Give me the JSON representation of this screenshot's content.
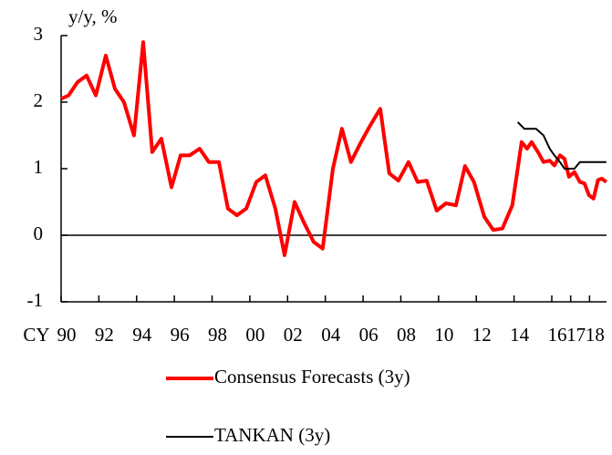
{
  "chart_data": {
    "type": "line",
    "y_label": "y/y, %",
    "x_label": "CY",
    "xlim": [
      1990,
      2018.9
    ],
    "ylim": [
      -1,
      3
    ],
    "yticks": [
      -1,
      0,
      1,
      2,
      3
    ],
    "xticks": [
      {
        "value": 1990,
        "label": "90"
      },
      {
        "value": 1992,
        "label": "92"
      },
      {
        "value": 1994,
        "label": "94"
      },
      {
        "value": 1996,
        "label": "96"
      },
      {
        "value": 1998,
        "label": "98"
      },
      {
        "value": 2000,
        "label": "00"
      },
      {
        "value": 2002,
        "label": "02"
      },
      {
        "value": 2004,
        "label": "04"
      },
      {
        "value": 2006,
        "label": "06"
      },
      {
        "value": 2008,
        "label": "08"
      },
      {
        "value": 2010,
        "label": "10"
      },
      {
        "value": 2012,
        "label": "12"
      },
      {
        "value": 2014,
        "label": "14"
      },
      {
        "value": 2016,
        "label": "16"
      },
      {
        "value": 2017,
        "label": "17"
      },
      {
        "value": 2018,
        "label": "18"
      }
    ],
    "legend": "bottom",
    "series": [
      {
        "name": "Consensus Forecasts (3y)",
        "color": "#ff0000",
        "width": 4,
        "x": [
          1990.0,
          1990.39,
          1990.87,
          1991.35,
          1991.84,
          1992.37,
          1992.85,
          1993.33,
          1993.86,
          1994.35,
          1994.83,
          1995.31,
          1995.85,
          1996.33,
          1996.81,
          1997.34,
          1997.83,
          1998.36,
          1998.84,
          1999.32,
          1999.81,
          2000.34,
          2000.82,
          2001.35,
          2001.84,
          2002.37,
          2002.85,
          2003.38,
          2003.86,
          2004.4,
          2004.88,
          2005.36,
          2005.89,
          2006.38,
          2006.91,
          2007.39,
          2007.87,
          2008.41,
          2008.89,
          2009.37,
          2009.9,
          2010.39,
          2010.92,
          2011.4,
          2011.88,
          2012.42,
          2012.9,
          2013.38,
          2013.91,
          2014.4,
          2014.69,
          2014.93,
          2015.27,
          2015.56,
          2015.89,
          2016.14,
          2016.43,
          2016.67,
          2016.91,
          2017.2,
          2017.49,
          2017.73,
          2017.97,
          2018.21,
          2018.45,
          2018.65,
          2018.89
        ],
        "values": [
          2.05,
          2.1,
          2.3,
          2.4,
          2.1,
          2.7,
          2.2,
          2.0,
          1.5,
          2.9,
          1.25,
          1.45,
          0.72,
          1.2,
          1.2,
          1.3,
          1.1,
          1.1,
          0.4,
          0.3,
          0.4,
          0.8,
          0.9,
          0.4,
          -0.3,
          0.5,
          0.2,
          -0.1,
          -0.2,
          1.0,
          1.6,
          1.1,
          1.4,
          1.65,
          1.9,
          0.93,
          0.82,
          1.1,
          0.8,
          0.82,
          0.37,
          0.48,
          0.45,
          1.04,
          0.8,
          0.28,
          0.08,
          0.1,
          0.45,
          1.4,
          1.3,
          1.4,
          1.25,
          1.1,
          1.12,
          1.05,
          1.2,
          1.15,
          0.88,
          0.95,
          0.8,
          0.78,
          0.6,
          0.55,
          0.83,
          0.85,
          0.8
        ]
      },
      {
        "name": "TANKAN (3y)",
        "color": "#000000",
        "width": 2,
        "x": [
          2014.2,
          2014.54,
          2015.17,
          2015.56,
          2015.89,
          2016.14,
          2016.43,
          2016.67,
          2017.2,
          2017.49,
          2018.89
        ],
        "values": [
          1.7,
          1.6,
          1.6,
          1.5,
          1.3,
          1.2,
          1.1,
          1.0,
          1.0,
          1.1,
          1.1
        ]
      }
    ]
  }
}
